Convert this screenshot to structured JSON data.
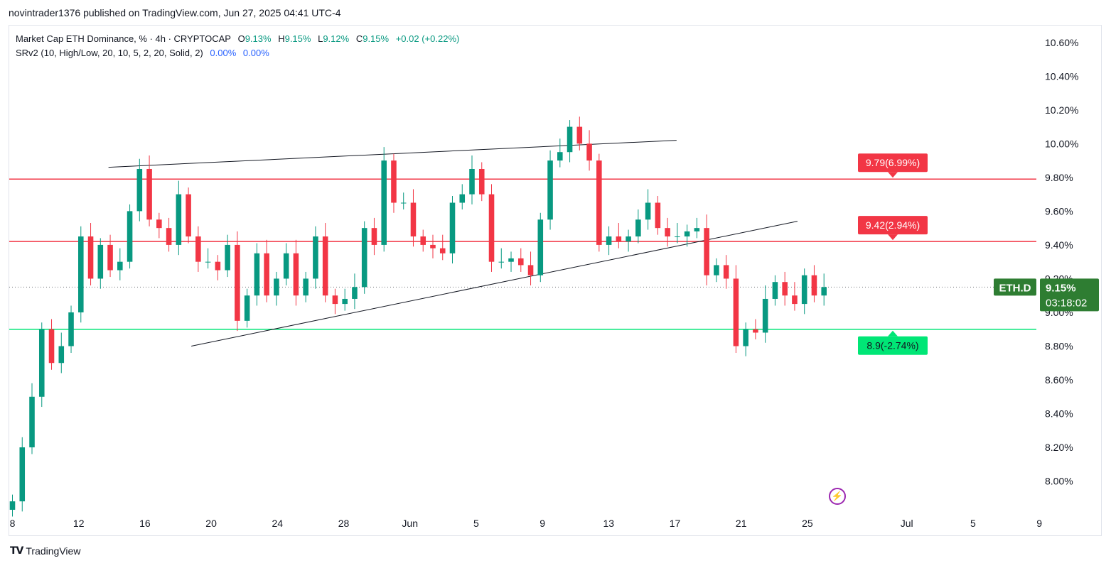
{
  "publisher": "novintrader1376 published on TradingView.com, Jun 27, 2025 04:41 UTC-4",
  "legend": {
    "title": "Market Cap ETH Dominance, % · 4h · CRYPTOCAP",
    "o_label": "O",
    "o_val": "9.13%",
    "h_label": "H",
    "h_val": "9.15%",
    "l_label": "L",
    "l_val": "9.12%",
    "c_label": "C",
    "c_val": "9.15%",
    "change": "+0.02 (+0.22%)",
    "indicator": "SRv2 (10, High/Low, 20, 10, 5, 2, 20, Solid, 2)",
    "ind_v1": "0.00%",
    "ind_v2": "0.00%"
  },
  "footer": {
    "logo": "TV",
    "brand": "TradingView"
  },
  "colors": {
    "up": "#089981",
    "down": "#f23645",
    "resistance": "#f23645",
    "support": "#00e676",
    "price_tag": "#2e7d32",
    "alert": "#9c27b0"
  },
  "chart_data": {
    "type": "candlestick",
    "symbol": "ETH.D",
    "timeframe": "4h",
    "ylim": [
      7.83,
      10.7
    ],
    "y_ticks": [
      "10.60%",
      "10.40%",
      "10.20%",
      "10.00%",
      "9.80%",
      "9.60%",
      "9.40%",
      "9.20%",
      "9.00%",
      "8.80%",
      "8.60%",
      "8.40%",
      "8.20%",
      "8.00%"
    ],
    "y_tick_values": [
      10.6,
      10.4,
      10.2,
      10.0,
      9.8,
      9.6,
      9.4,
      9.2,
      9.0,
      8.8,
      8.6,
      8.4,
      8.2,
      8.0
    ],
    "x_ticks": [
      "8",
      "12",
      "16",
      "20",
      "24",
      "28",
      "Jun",
      "5",
      "9",
      "13",
      "17",
      "21",
      "25",
      "Jul",
      "5",
      "9"
    ],
    "x_tick_days": [
      0,
      4,
      8,
      12,
      16,
      20,
      24,
      28,
      32,
      36,
      40,
      44,
      48,
      54,
      58,
      62
    ],
    "last_price": {
      "label": "ETH.D",
      "value": "9.15%",
      "countdown": "03:18:02",
      "price": 9.15
    },
    "levels": [
      {
        "price": 9.79,
        "label": "9.79(6.99%)",
        "kind": "resistance"
      },
      {
        "price": 9.42,
        "label": "9.42(2.94%)",
        "kind": "resistance"
      },
      {
        "price": 8.9,
        "label": "8.9(-2.74%)",
        "kind": "support"
      }
    ],
    "trendlines": [
      {
        "from": [
          5.8,
          9.86
        ],
        "to": [
          40.1,
          10.02
        ]
      },
      {
        "from": [
          10.8,
          8.8
        ],
        "to": [
          47.4,
          9.54
        ]
      }
    ],
    "closes": [
      7.88,
      8.2,
      8.5,
      8.9,
      8.7,
      8.8,
      9.0,
      9.45,
      9.2,
      9.4,
      9.25,
      9.3,
      9.6,
      9.85,
      9.55,
      9.5,
      9.4,
      9.7,
      9.45,
      9.3,
      9.3,
      9.25,
      9.4,
      8.95,
      9.1,
      9.35,
      9.1,
      9.2,
      9.35,
      9.1,
      9.2,
      9.45,
      9.1,
      9.05,
      9.08,
      9.15,
      9.5,
      9.4,
      9.9,
      9.65,
      9.65,
      9.45,
      9.4,
      9.38,
      9.35,
      9.65,
      9.7,
      9.85,
      9.7,
      9.3,
      9.3,
      9.32,
      9.28,
      9.22,
      9.55,
      9.9,
      9.95,
      10.1,
      10.0,
      9.9,
      9.4,
      9.45,
      9.42,
      9.45,
      9.55,
      9.65,
      9.5,
      9.45,
      9.45,
      9.48,
      9.5,
      9.22,
      9.28,
      9.2,
      8.8,
      8.9,
      8.88,
      9.08,
      9.18,
      9.1,
      9.05,
      9.22,
      9.1,
      9.15
    ]
  }
}
